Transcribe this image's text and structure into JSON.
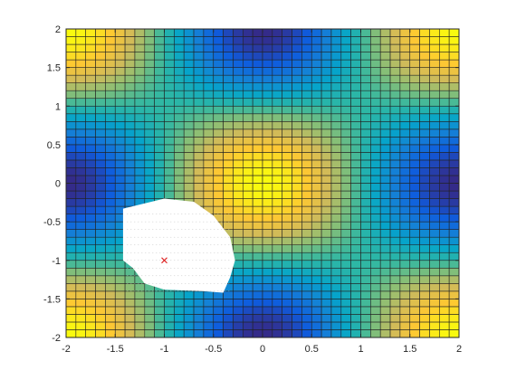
{
  "window": {
    "title": ""
  },
  "chart_data": {
    "type": "heatmap",
    "title": "",
    "xlabel": "",
    "ylabel": "",
    "xlim": [
      -2,
      2
    ],
    "ylim": [
      -2,
      2
    ],
    "x_ticks": [
      -2,
      -1.5,
      -1,
      -0.5,
      0,
      0.5,
      1,
      1.5,
      2
    ],
    "y_ticks": [
      -2,
      -1.5,
      -1,
      -0.5,
      0,
      0.5,
      1,
      1.5,
      2
    ],
    "x_tick_labels": [
      "-2",
      "-1.5",
      "-1",
      "-0.5",
      "0",
      "0.5",
      "1",
      "1.5",
      "2"
    ],
    "y_tick_labels": [
      "-2",
      "-1.5",
      "-1",
      "-0.5",
      "0",
      "0.5",
      "1",
      "1.5",
      "2"
    ],
    "grid_cells": [
      40,
      40
    ],
    "surface": "z = cos(pi*x/2) * cos(pi*y/2), viewed from above (pcolor/surf)",
    "colormap": "parula",
    "colormap_stops": [
      "#352a87",
      "#0f5cdd",
      "#1481d6",
      "#06a4ca",
      "#2eb7a4",
      "#87bf77",
      "#d1bb59",
      "#fec832",
      "#f9fb0e"
    ],
    "grid_color": "#222222",
    "masked_region": {
      "color": "#ffffff",
      "polygon": [
        [
          -1.42,
          -0.33
        ],
        [
          -1.0,
          -0.2
        ],
        [
          -0.7,
          -0.24
        ],
        [
          -0.5,
          -0.42
        ],
        [
          -0.33,
          -0.7
        ],
        [
          -0.28,
          -1.0
        ],
        [
          -0.33,
          -1.22
        ],
        [
          -0.4,
          -1.42
        ],
        [
          -0.6,
          -1.4
        ],
        [
          -1.0,
          -1.38
        ],
        [
          -1.2,
          -1.3
        ],
        [
          -1.32,
          -1.1
        ],
        [
          -1.42,
          -1.0
        ]
      ]
    },
    "marker": {
      "x": -1.0,
      "y": -1.0,
      "color": "#dd2222",
      "symbol": "x"
    }
  }
}
